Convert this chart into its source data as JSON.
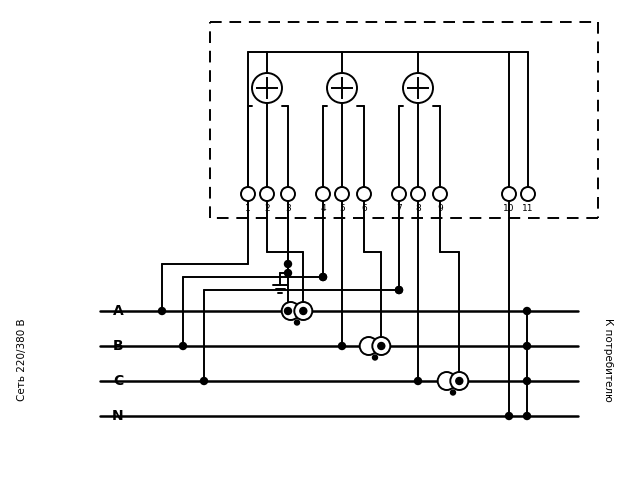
{
  "fig_width": 6.17,
  "fig_height": 4.82,
  "dpi": 100,
  "bg_color": "#ffffff",
  "lc": "#000000",
  "lw": 1.4,
  "left_label": "Сеть 220/380 В",
  "right_label": "К потребителю",
  "phase_labels": [
    "A",
    "B",
    "C",
    "N"
  ],
  "term_labels": [
    "1",
    "2",
    "3",
    "4",
    "5",
    "6",
    "7",
    "8",
    "9",
    "10",
    "11"
  ]
}
